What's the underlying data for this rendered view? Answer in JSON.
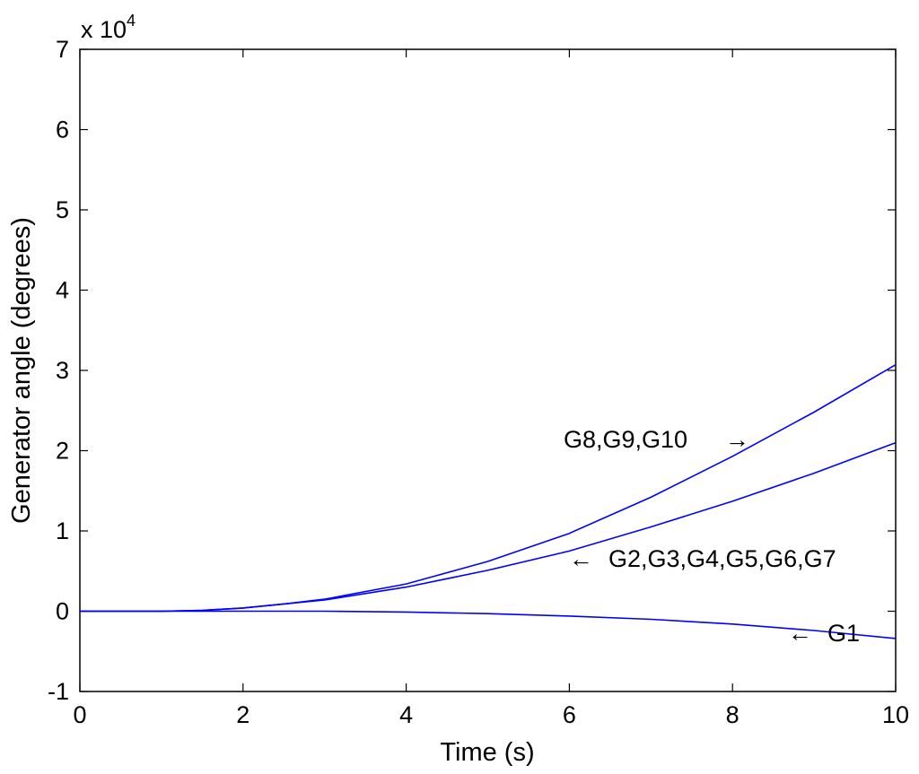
{
  "chart_data": {
    "type": "line",
    "xlabel": "Time (s)",
    "ylabel": "Generator angle (degrees)",
    "y_multiplier": "x 10",
    "y_multiplier_exponent": "4",
    "xlim": [
      0,
      10
    ],
    "ylim": [
      -1,
      7
    ],
    "x_ticks": [
      "0",
      "2",
      "4",
      "6",
      "8",
      "10"
    ],
    "y_ticks": [
      "-1",
      "0",
      "1",
      "2",
      "3",
      "4",
      "5",
      "6",
      "7"
    ],
    "grid": false,
    "line_color": "#0000ff",
    "x": [
      0,
      1,
      1.5,
      2,
      2.5,
      3,
      4,
      5,
      6,
      7,
      8,
      9,
      10
    ],
    "series": [
      {
        "values": [
          0,
          0,
          0.01,
          0.04,
          0.09,
          0.15,
          0.34,
          0.62,
          0.97,
          1.42,
          1.93,
          2.48,
          3.07
        ]
      },
      {
        "values": [
          0,
          0,
          0.01,
          0.04,
          0.09,
          0.14,
          0.3,
          0.51,
          0.75,
          1.05,
          1.37,
          1.72,
          2.1
        ]
      },
      {
        "values": [
          0,
          0,
          0,
          0,
          0,
          0,
          -0.01,
          -0.03,
          -0.06,
          -0.1,
          -0.16,
          -0.24,
          -0.34
        ]
      }
    ],
    "annotations": [
      {
        "text": "G8,G9,G10",
        "arrow": "→"
      },
      {
        "text": "G2,G3,G4,G5,G6,G7",
        "arrow": "←"
      },
      {
        "text": "G1",
        "arrow": "←"
      }
    ]
  }
}
